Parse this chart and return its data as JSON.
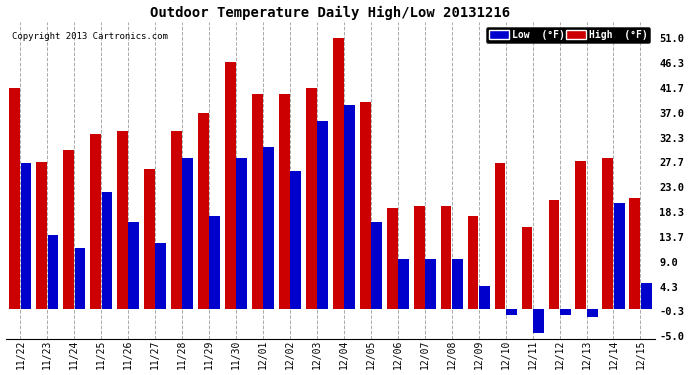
{
  "title": "Outdoor Temperature Daily High/Low 20131216",
  "copyright": "Copyright 2013 Cartronics.com",
  "legend_low": "Low  (°F)",
  "legend_high": "High  (°F)",
  "low_color": "#0000cc",
  "high_color": "#cc0000",
  "background_color": "#ffffff",
  "ylabel_right_ticks": [
    51.0,
    46.3,
    41.7,
    37.0,
    32.3,
    27.7,
    23.0,
    18.3,
    13.7,
    9.0,
    4.3,
    -0.3,
    -5.0
  ],
  "ylim": [
    -5.5,
    54.0
  ],
  "dates": [
    "11/22",
    "11/23",
    "11/24",
    "11/25",
    "11/26",
    "11/27",
    "11/28",
    "11/29",
    "11/30",
    "12/01",
    "12/02",
    "12/03",
    "12/04",
    "12/05",
    "12/06",
    "12/07",
    "12/08",
    "12/09",
    "12/10",
    "12/11",
    "12/12",
    "12/13",
    "12/14",
    "12/15"
  ],
  "high_vals": [
    41.7,
    27.7,
    30.0,
    33.0,
    33.5,
    26.5,
    33.5,
    37.0,
    46.5,
    40.5,
    40.5,
    41.7,
    51.0,
    39.0,
    19.0,
    19.5,
    19.5,
    17.5,
    27.5,
    15.5,
    20.5,
    28.0,
    28.5,
    21.0
  ],
  "low_vals": [
    27.5,
    14.0,
    11.5,
    22.0,
    16.5,
    12.5,
    28.5,
    17.5,
    28.5,
    30.5,
    26.0,
    35.5,
    38.5,
    16.5,
    9.5,
    9.5,
    9.5,
    4.5,
    -1.0,
    -4.5,
    -1.0,
    -1.5,
    20.0,
    5.0
  ],
  "bar_width": 0.4,
  "figsize": [
    6.9,
    3.75
  ],
  "dpi": 100
}
